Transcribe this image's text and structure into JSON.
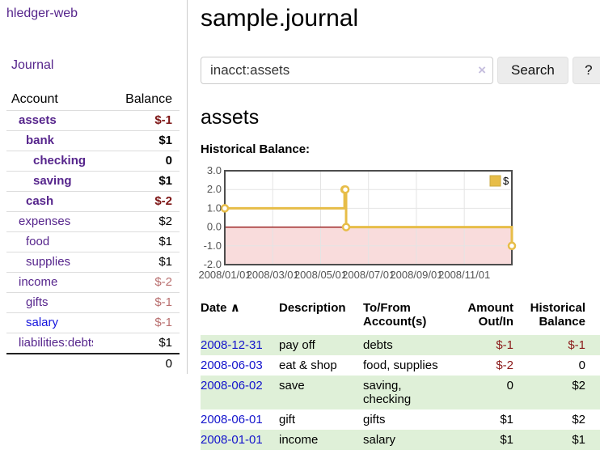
{
  "app": {
    "title": "hledger-web"
  },
  "sidebar": {
    "journal_link": "Journal",
    "accounts_header": {
      "account": "Account",
      "balance": "Balance"
    },
    "accounts": [
      {
        "name": "assets",
        "balance": "$-1",
        "depth": 1,
        "bold": true,
        "balance_style": "neg-strong"
      },
      {
        "name": "bank",
        "balance": "$1",
        "depth": 2,
        "bold": true,
        "balance_style": "pos"
      },
      {
        "name": "checking",
        "balance": "0",
        "depth": 3,
        "bold": true,
        "balance_style": "pos"
      },
      {
        "name": "saving",
        "balance": "$1",
        "depth": 3,
        "bold": true,
        "balance_style": "pos"
      },
      {
        "name": "cash",
        "balance": "$-2",
        "depth": 2,
        "bold": true,
        "balance_style": "neg-strong"
      },
      {
        "name": "expenses",
        "balance": "$2",
        "depth": 1,
        "bold": false,
        "balance_style": "pos"
      },
      {
        "name": "food",
        "balance": "$1",
        "depth": 2,
        "bold": false,
        "balance_style": "pos"
      },
      {
        "name": "supplies",
        "balance": "$1",
        "depth": 2,
        "bold": false,
        "balance_style": "pos"
      },
      {
        "name": "income",
        "balance": "$-2",
        "depth": 1,
        "bold": false,
        "balance_style": "neg-soft"
      },
      {
        "name": "gifts",
        "balance": "$-1",
        "depth": 2,
        "bold": false,
        "balance_style": "neg-soft"
      },
      {
        "name": "salary",
        "balance": "$-1",
        "depth": 2,
        "bold": false,
        "balance_style": "neg-soft",
        "link_style": "blue"
      },
      {
        "name": "liabilities:debts",
        "balance": "$1",
        "depth": 1,
        "bold": false,
        "balance_style": "pos"
      }
    ],
    "total": "0"
  },
  "header": {
    "title": "sample.journal"
  },
  "search": {
    "value": "inacct:assets",
    "clear_icon": "×",
    "button_label": "Search",
    "help_label": "?"
  },
  "account_page": {
    "title": "assets",
    "chart_label": "Historical Balance:"
  },
  "chart_data": {
    "type": "line",
    "title": "Historical Balance",
    "legend": "$",
    "legend_position": "top-right",
    "grid": true,
    "ylim": [
      -2.0,
      3.0
    ],
    "yticks": [
      "3.0",
      "2.0",
      "1.0",
      "0.0",
      "-1.0",
      "-2.0"
    ],
    "ytick_values": [
      3.0,
      2.0,
      1.0,
      0.0,
      -1.0,
      -2.0
    ],
    "xticks": [
      "2008/01/01",
      "2008/03/01",
      "2008/05/01",
      "2008/07/01",
      "2008/09/01",
      "2008/11/01"
    ],
    "xtick_dates": [
      "2008-01-01",
      "2008-03-01",
      "2008-05-01",
      "2008-07-01",
      "2008-09-01",
      "2008-11-01"
    ],
    "xrange": [
      "2008-01-01",
      "2008-12-31"
    ],
    "series": [
      {
        "name": "$",
        "color": "#e7bd48",
        "step": true,
        "points": [
          [
            "2008-01-01",
            1.0
          ],
          [
            "2008-06-01",
            2.0
          ],
          [
            "2008-06-02",
            2.0
          ],
          [
            "2008-06-03",
            0.0
          ],
          [
            "2008-12-31",
            -1.0
          ]
        ]
      }
    ],
    "negative_region_fill": "#f9dcdc",
    "zero_line_color": "#8b0000"
  },
  "register": {
    "headers": {
      "date": "Date",
      "sort_caret": "∧",
      "description": "Description",
      "accounts": "To/From Account(s)",
      "amount": "Amount Out/In",
      "balance": "Historical Balance"
    },
    "rows": [
      {
        "date": "2008-12-31",
        "description": "pay off",
        "accounts": "debts",
        "amount": "$-1",
        "amount_neg": true,
        "balance": "$-1",
        "balance_neg": true
      },
      {
        "date": "2008-06-03",
        "description": "eat & shop",
        "accounts": "food, supplies",
        "amount": "$-2",
        "amount_neg": true,
        "balance": "0",
        "balance_neg": false
      },
      {
        "date": "2008-06-02",
        "description": "save",
        "accounts": "saving,\nchecking",
        "amount": "0",
        "amount_neg": false,
        "balance": "$2",
        "balance_neg": false
      },
      {
        "date": "2008-06-01",
        "description": "gift",
        "accounts": "gifts",
        "amount": "$1",
        "amount_neg": false,
        "balance": "$2",
        "balance_neg": false
      },
      {
        "date": "2008-01-01",
        "description": "income",
        "accounts": "salary",
        "amount": "$1",
        "amount_neg": false,
        "balance": "$1",
        "balance_neg": false
      }
    ]
  }
}
